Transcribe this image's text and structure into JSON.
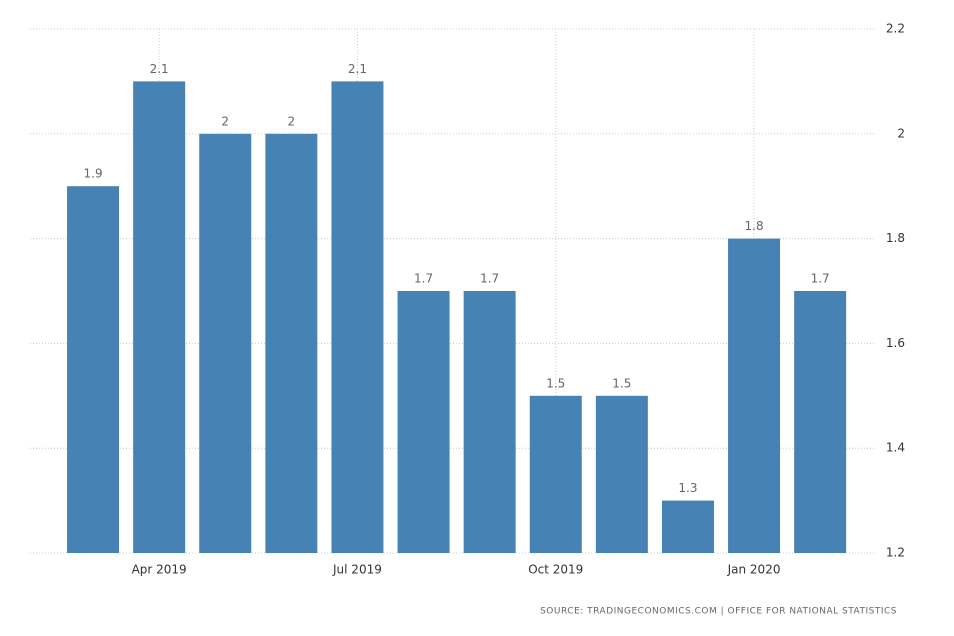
{
  "chart_data": {
    "type": "bar",
    "categories": [
      null,
      "Apr 2019",
      null,
      null,
      "Jul 2019",
      null,
      null,
      "Oct 2019",
      null,
      null,
      "Jan 2020",
      null
    ],
    "values": [
      1.9,
      2.1,
      2,
      2,
      2.1,
      1.7,
      1.7,
      1.5,
      1.5,
      1.3,
      1.8,
      1.7
    ],
    "color": "#4682b4",
    "ylim": [
      1.2,
      2.2
    ],
    "yticks": [
      1.2,
      1.4,
      1.6,
      1.8,
      2,
      2.2
    ],
    "grid": true,
    "source": "SOURCE: TRADINGECONOMICS.COM  |  OFFICE FOR NATIONAL STATISTICS"
  }
}
